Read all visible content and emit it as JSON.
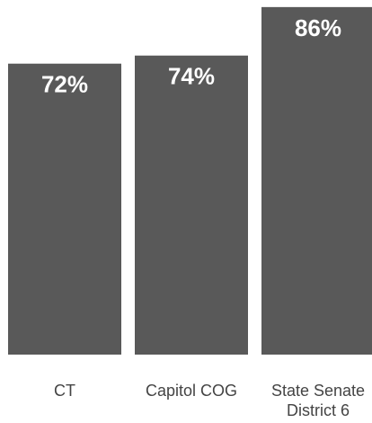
{
  "chart_data": {
    "type": "bar",
    "categories": [
      [
        "CT"
      ],
      [
        "Capitol COG"
      ],
      [
        "State Senate",
        "District 6"
      ]
    ],
    "values": [
      72,
      74,
      86
    ],
    "data_labels": [
      "72%",
      "74%",
      "86%"
    ],
    "ylim": [
      0,
      100
    ],
    "grid": false,
    "legend": "none",
    "colors": {
      "bar": "#595959",
      "value_label": "#ffffff",
      "category_label": "#444444"
    }
  }
}
